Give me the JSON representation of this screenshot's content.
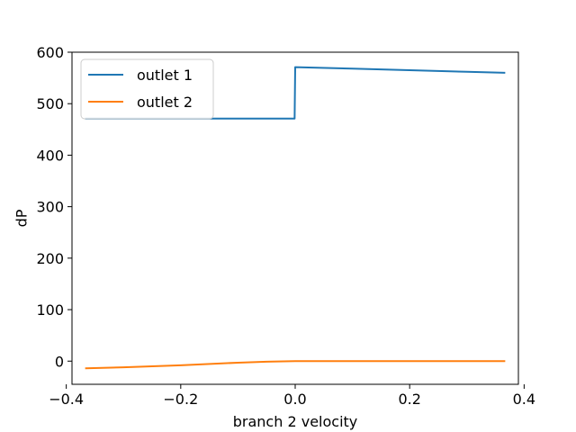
{
  "chart_data": {
    "type": "line",
    "title": "",
    "xlabel": "branch 2 velocity",
    "ylabel": "dP",
    "xlim": [
      -0.39,
      0.39
    ],
    "ylim": [
      -45,
      600
    ],
    "xticks": [
      -0.4,
      -0.2,
      0.0,
      0.2,
      0.4
    ],
    "xtick_labels": [
      "−0.4",
      "−0.2",
      "0.0",
      "0.2",
      "0.4"
    ],
    "yticks": [
      0,
      100,
      200,
      300,
      400,
      500,
      600
    ],
    "ytick_labels": [
      "0",
      "100",
      "200",
      "300",
      "400",
      "500",
      "600"
    ],
    "grid": false,
    "legend_position": "upper-left",
    "series": [
      {
        "name": "outlet 1",
        "color": "#1f77b4",
        "points": [
          [
            -0.367,
            471
          ],
          [
            -0.2,
            471
          ],
          [
            -0.1,
            471
          ],
          [
            -0.001,
            471
          ],
          [
            0.0,
            571
          ],
          [
            0.1,
            568
          ],
          [
            0.2,
            565
          ],
          [
            0.3,
            562
          ],
          [
            0.367,
            560
          ]
        ]
      },
      {
        "name": "outlet 2",
        "color": "#ff7f0e",
        "points": [
          [
            -0.367,
            -14
          ],
          [
            -0.3,
            -12
          ],
          [
            -0.2,
            -8
          ],
          [
            -0.1,
            -3
          ],
          [
            -0.05,
            -1
          ],
          [
            0.0,
            0
          ],
          [
            0.1,
            0
          ],
          [
            0.2,
            0
          ],
          [
            0.3,
            0
          ],
          [
            0.367,
            0
          ]
        ]
      }
    ]
  }
}
